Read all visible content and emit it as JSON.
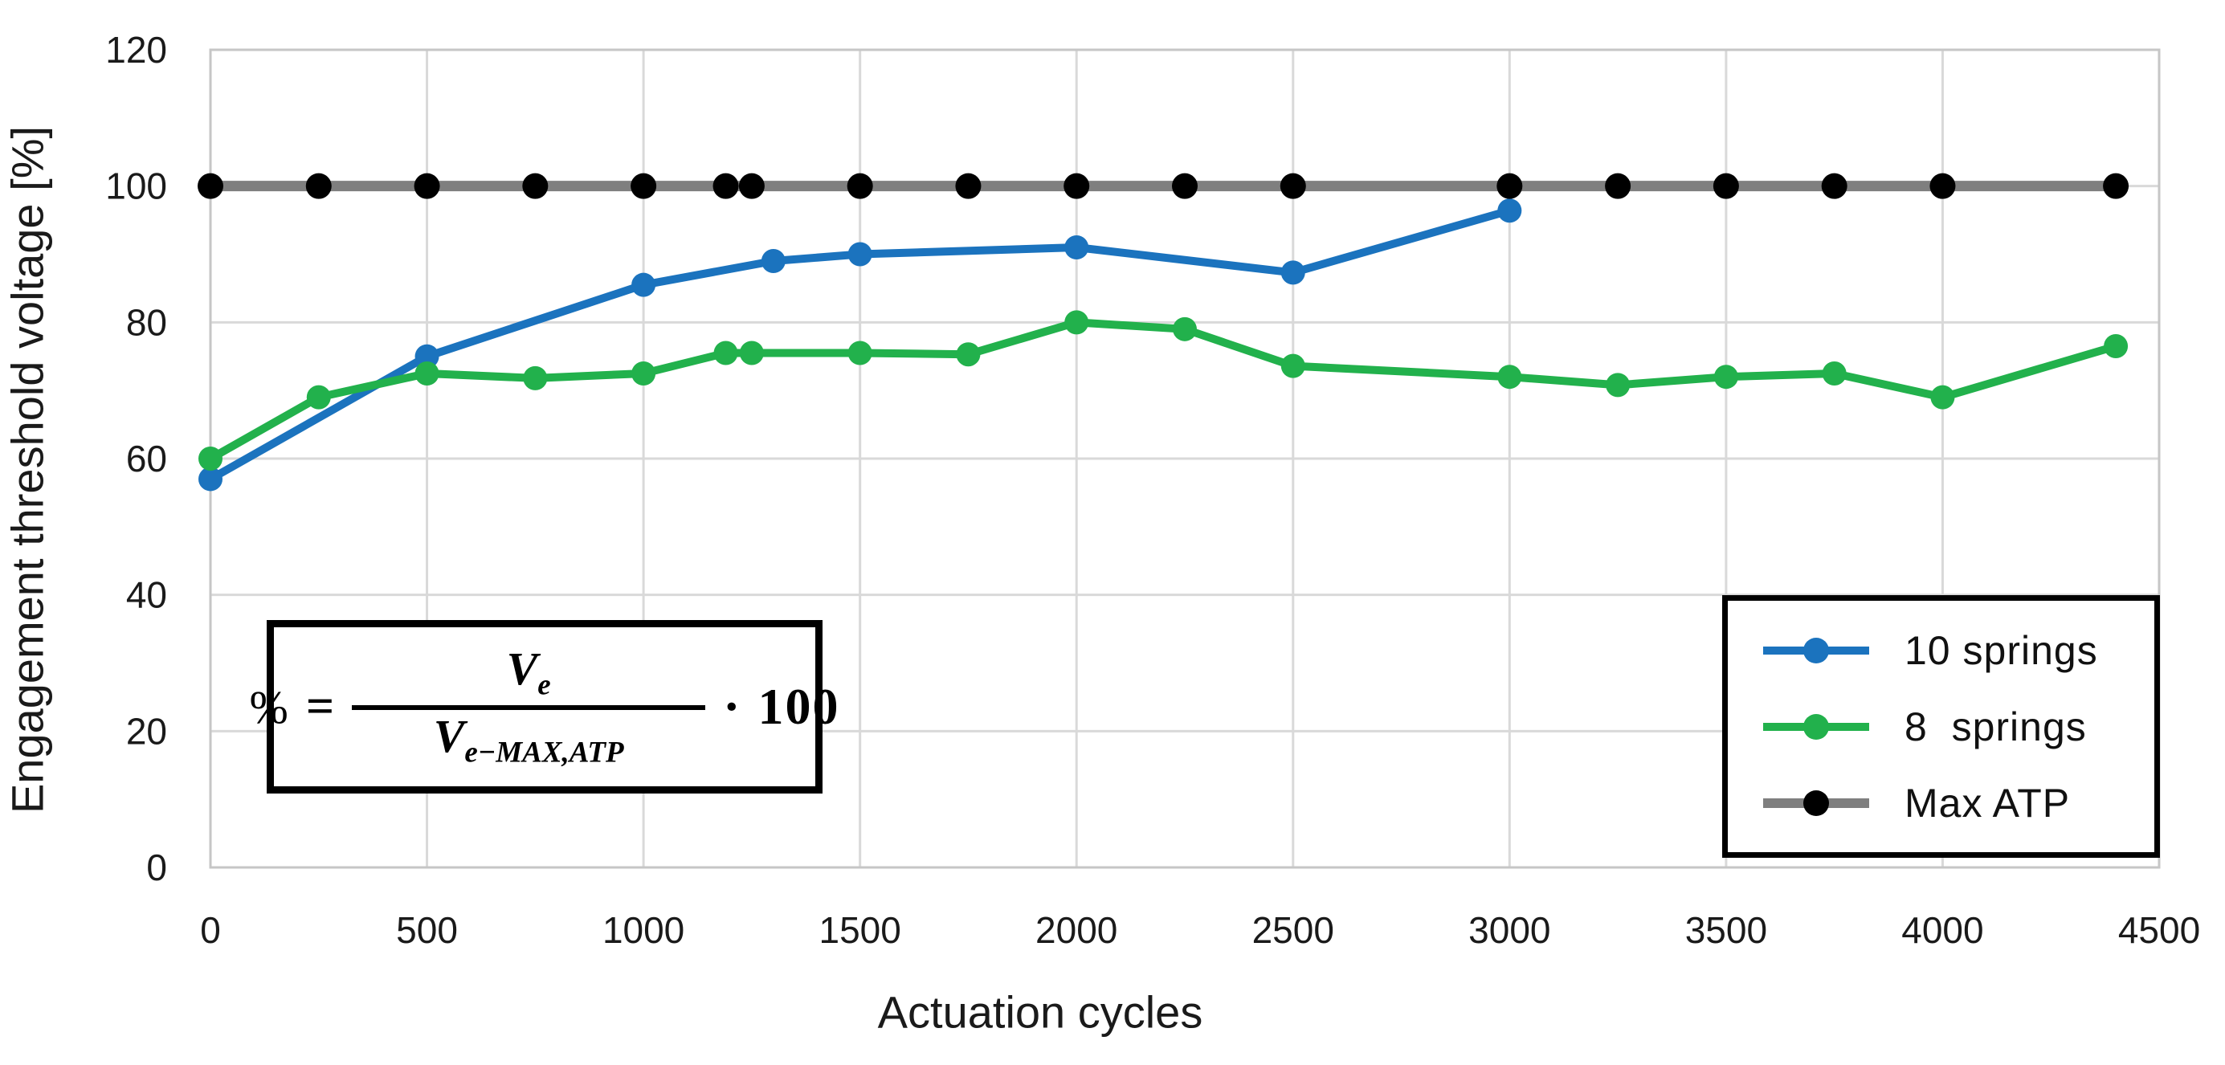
{
  "page": {
    "background": "#ffffff"
  },
  "chart_data": {
    "type": "line",
    "title": "",
    "xlabel": "Actuation cycles",
    "ylabel": "Engagement threshold voltage [%]",
    "xlim": [
      0,
      4500
    ],
    "ylim": [
      0,
      120
    ],
    "x_ticks": [
      0,
      500,
      1000,
      1500,
      2000,
      2500,
      3000,
      3500,
      4000,
      4500
    ],
    "y_ticks": [
      0,
      20,
      40,
      60,
      80,
      100,
      120
    ],
    "grid": true,
    "gridline_color": "#d9d9d9",
    "border_color": "#c6c6c6",
    "tick_label_color": "#1a1a1a",
    "legend_position": "lower right inside",
    "series": [
      {
        "name": "10 springs",
        "color": "#1b73be",
        "marker_color": "#1b73be",
        "line_width": 10,
        "marker_size": 15,
        "x": [
          0,
          500,
          1000,
          1300,
          1500,
          2000,
          2500,
          3000
        ],
        "values": [
          57,
          75,
          85.5,
          89,
          90,
          91,
          87.3,
          96.4
        ]
      },
      {
        "name": "8 springs",
        "color": "#22b14c",
        "marker_color": "#22b14c",
        "line_width": 10,
        "marker_size": 15,
        "x": [
          0,
          250,
          500,
          750,
          1000,
          1190,
          1250,
          1500,
          1750,
          2000,
          2250,
          2500,
          3000,
          3250,
          3500,
          3750,
          4000,
          4400
        ],
        "values": [
          60,
          69,
          72.5,
          71.8,
          72.5,
          75.5,
          75.5,
          75.5,
          75.3,
          80,
          79,
          73.6,
          72,
          70.8,
          72,
          72.5,
          69,
          76.5
        ]
      },
      {
        "name": "Max ATP",
        "color": "#7f7f7f",
        "marker_color": "#000000",
        "line_width": 13,
        "marker_size": 16,
        "x": [
          0,
          250,
          500,
          750,
          1000,
          1190,
          1250,
          1500,
          1750,
          2000,
          2250,
          2500,
          3000,
          3250,
          3500,
          3750,
          4000,
          4400
        ],
        "values": [
          100,
          100,
          100,
          100,
          100,
          100,
          100,
          100,
          100,
          100,
          100,
          100,
          100,
          100,
          100,
          100,
          100,
          100
        ]
      }
    ]
  },
  "legend": {
    "entries": [
      {
        "label": "10 springs",
        "line_color": "#1b73be",
        "marker_color": "#1b73be"
      },
      {
        "label": "8  springs",
        "line_color": "#22b14c",
        "marker_color": "#22b14c"
      },
      {
        "label": "Max ATP",
        "line_color": "#7f7f7f",
        "marker_color": "#000000"
      }
    ]
  },
  "formula": {
    "lhs": "%",
    "equals": "=",
    "numerator": {
      "base": "V",
      "sub": "e"
    },
    "denominator": {
      "base": "V",
      "sub": "e−MAX,ATP"
    },
    "operator": "·",
    "factor": "100"
  }
}
